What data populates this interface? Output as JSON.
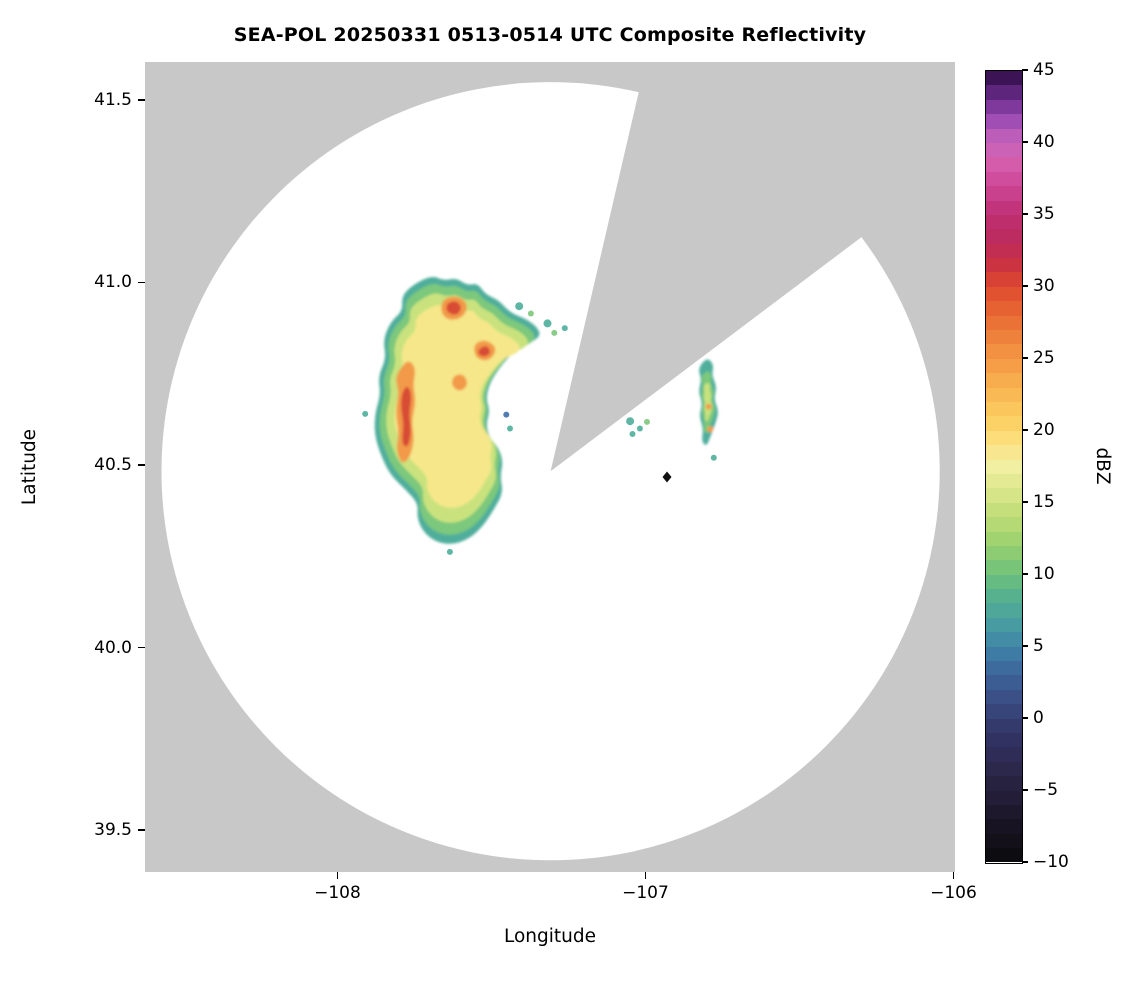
{
  "figure": {
    "title": "SEA-POL 20250331 0513-0514 UTC Composite Reflectivity",
    "xlabel": "Longitude",
    "ylabel": "Latitude",
    "colorbar_label": "dBZ",
    "masked_color": "#c8c8c8",
    "field_color": "#ffffff"
  },
  "chart_data": {
    "type": "heatmap",
    "title": "SEA-POL 20250331 0513-0514 UTC Composite Reflectivity",
    "xlabel": "Longitude",
    "ylabel": "Latitude",
    "x_range": [
      -108.625,
      -105.995
    ],
    "y_range": [
      39.385,
      41.604
    ],
    "x_ticks": {
      "values": [
        -108,
        -107,
        -106
      ],
      "labels": [
        "−108",
        "−107",
        "−106"
      ]
    },
    "y_ticks": {
      "values": [
        39.5,
        40.0,
        40.5,
        41.0,
        41.5
      ],
      "labels": [
        "39.5",
        "40.0",
        "40.5",
        "41.0",
        "41.5"
      ]
    },
    "radar": {
      "center_lon": -107.308,
      "center_lat": 40.483,
      "range_deg_lat": 1.066,
      "missing_sector_azimuth_deg": [
        13,
        53
      ]
    },
    "wedge_polygon": [
      [
        -107.308,
        40.483
      ],
      [
        -106.891,
        41.996
      ],
      [
        -105.863,
        41.401
      ]
    ],
    "palette": {
      "teal": "#4fae9b",
      "green": "#7cc87c",
      "yellowgreen": "#c9e27e",
      "yellow": "#f5e78a",
      "orange": "#f29a48",
      "red": "#d84b35",
      "blue": "#3f6fa8"
    },
    "colorbar": {
      "min": -10,
      "max": 45,
      "segments": 55,
      "tick_values": [
        45,
        40,
        35,
        30,
        25,
        20,
        15,
        10,
        5,
        0,
        -5,
        -10
      ],
      "tick_labels": [
        "45",
        "40",
        "35",
        "30",
        "25",
        "20",
        "15",
        "10",
        "5",
        "0",
        "−5",
        "−10"
      ],
      "stops": [
        [
          -10,
          "#0a0a0c"
        ],
        [
          -7,
          "#1b1527"
        ],
        [
          -4,
          "#2a2546"
        ],
        [
          -1,
          "#343467"
        ],
        [
          1,
          "#394a80"
        ],
        [
          3,
          "#3c639a"
        ],
        [
          5,
          "#3f84a9"
        ],
        [
          7,
          "#49a29e"
        ],
        [
          9,
          "#5cb588"
        ],
        [
          10,
          "#6ec07b"
        ],
        [
          12,
          "#97d06f"
        ],
        [
          14,
          "#bedc77"
        ],
        [
          16,
          "#dde88d"
        ],
        [
          17.5,
          "#f1efa2"
        ],
        [
          19,
          "#fbe387"
        ],
        [
          20,
          "#fcd76c"
        ],
        [
          22,
          "#fac158"
        ],
        [
          24,
          "#f6a54a"
        ],
        [
          26,
          "#f08a3e"
        ],
        [
          28,
          "#e96a34"
        ],
        [
          30,
          "#dd4a2e"
        ],
        [
          31.5,
          "#cc3340"
        ],
        [
          33,
          "#bc2b59"
        ],
        [
          35,
          "#bf2f74"
        ],
        [
          37,
          "#cc4594"
        ],
        [
          38.5,
          "#d55cab"
        ],
        [
          40,
          "#c865bb"
        ],
        [
          41.5,
          "#a04db4"
        ],
        [
          43,
          "#6f2f92"
        ],
        [
          44,
          "#4a1a66"
        ],
        [
          45,
          "#2e0e45"
        ]
      ]
    },
    "echoes": {
      "main": {
        "max_dbz": 32,
        "outline": [
          [
            -107.694,
            41.02
          ],
          [
            -107.655,
            41.005
          ],
          [
            -107.615,
            41.012
          ],
          [
            -107.578,
            40.992
          ],
          [
            -107.545,
            40.998
          ],
          [
            -107.52,
            40.968
          ],
          [
            -107.478,
            40.952
          ],
          [
            -107.452,
            40.928
          ],
          [
            -107.425,
            40.912
          ],
          [
            -107.388,
            40.9
          ],
          [
            -107.352,
            40.878
          ],
          [
            -107.34,
            40.855
          ],
          [
            -107.372,
            40.835
          ],
          [
            -107.415,
            40.822
          ],
          [
            -107.448,
            40.792
          ],
          [
            -107.478,
            40.762
          ],
          [
            -107.505,
            40.725
          ],
          [
            -107.518,
            40.682
          ],
          [
            -107.505,
            40.648
          ],
          [
            -107.518,
            40.61
          ],
          [
            -107.505,
            40.572
          ],
          [
            -107.478,
            40.548
          ],
          [
            -107.462,
            40.51
          ],
          [
            -107.472,
            40.468
          ],
          [
            -107.462,
            40.425
          ],
          [
            -107.492,
            40.378
          ],
          [
            -107.528,
            40.332
          ],
          [
            -107.572,
            40.298
          ],
          [
            -107.625,
            40.282
          ],
          [
            -107.678,
            40.288
          ],
          [
            -107.72,
            40.315
          ],
          [
            -107.742,
            40.355
          ],
          [
            -107.738,
            40.395
          ],
          [
            -107.778,
            40.432
          ],
          [
            -107.828,
            40.472
          ],
          [
            -107.86,
            40.528
          ],
          [
            -107.88,
            40.585
          ],
          [
            -107.878,
            40.642
          ],
          [
            -107.86,
            40.692
          ],
          [
            -107.868,
            40.742
          ],
          [
            -107.842,
            40.792
          ],
          [
            -107.852,
            40.842
          ],
          [
            -107.828,
            40.892
          ],
          [
            -107.788,
            40.922
          ],
          [
            -107.792,
            40.962
          ],
          [
            -107.758,
            40.992
          ]
        ],
        "layers": [
          {
            "scale": 1.0,
            "color": "teal",
            "dbz": 8
          },
          {
            "scale": 0.94,
            "color": "green",
            "dbz": 11
          },
          {
            "scale": 0.86,
            "color": "yellowgreen",
            "dbz": 14
          },
          {
            "scale": 0.76,
            "color": "yellow",
            "dbz": 18
          }
        ],
        "patches": [
          {
            "color": "orange",
            "dbz": 25,
            "points": [
              [
                -107.66,
                40.955
              ],
              [
                -107.61,
                40.965
              ],
              [
                -107.575,
                40.94
              ],
              [
                -107.59,
                40.905
              ],
              [
                -107.635,
                40.895
              ],
              [
                -107.665,
                40.915
              ]
            ]
          },
          {
            "color": "orange",
            "dbz": 25,
            "points": [
              [
                -107.8,
                40.76
              ],
              [
                -107.77,
                40.79
              ],
              [
                -107.745,
                40.765
              ],
              [
                -107.755,
                40.72
              ],
              [
                -107.745,
                40.672
              ],
              [
                -107.76,
                40.62
              ],
              [
                -107.75,
                40.57
              ],
              [
                -107.765,
                40.52
              ],
              [
                -107.79,
                40.5
              ],
              [
                -107.81,
                40.54
              ],
              [
                -107.8,
                40.59
              ],
              [
                -107.812,
                40.645
              ],
              [
                -107.8,
                40.7
              ],
              [
                -107.812,
                40.735
              ]
            ]
          },
          {
            "color": "orange",
            "dbz": 25,
            "points": [
              [
                -107.56,
                40.83
              ],
              [
                -107.52,
                40.845
              ],
              [
                -107.48,
                40.82
              ],
              [
                -107.505,
                40.785
              ],
              [
                -107.55,
                40.79
              ]
            ]
          },
          {
            "color": "orange",
            "dbz": 24,
            "points": [
              [
                -107.625,
                40.745
              ],
              [
                -107.59,
                40.75
              ],
              [
                -107.575,
                40.72
              ],
              [
                -107.6,
                40.7
              ],
              [
                -107.63,
                40.715
              ]
            ]
          },
          {
            "color": "red",
            "dbz": 30,
            "points": [
              [
                -107.645,
                40.945
              ],
              [
                -107.61,
                40.95
              ],
              [
                -107.595,
                40.928
              ],
              [
                -107.615,
                40.908
              ],
              [
                -107.648,
                40.92
              ]
            ]
          },
          {
            "color": "red",
            "dbz": 31,
            "points": [
              [
                -107.79,
                40.7
              ],
              [
                -107.772,
                40.72
              ],
              [
                -107.758,
                40.69
              ],
              [
                -107.768,
                40.64
              ],
              [
                -107.76,
                40.59
              ],
              [
                -107.772,
                40.545
              ],
              [
                -107.792,
                40.56
              ],
              [
                -107.785,
                40.61
              ],
              [
                -107.795,
                40.66
              ]
            ]
          },
          {
            "color": "red",
            "dbz": 29,
            "points": [
              [
                -107.54,
                40.82
              ],
              [
                -107.515,
                40.828
              ],
              [
                -107.5,
                40.808
              ],
              [
                -107.522,
                40.795
              ],
              [
                -107.545,
                40.803
              ]
            ]
          }
        ]
      },
      "secondary": {
        "max_dbz": 24,
        "outline": [
          [
            -106.8,
            40.795
          ],
          [
            -106.778,
            40.775
          ],
          [
            -106.785,
            40.745
          ],
          [
            -106.768,
            40.715
          ],
          [
            -106.778,
            40.68
          ],
          [
            -106.762,
            40.648
          ],
          [
            -106.772,
            40.615
          ],
          [
            -106.788,
            40.58
          ],
          [
            -106.802,
            40.55
          ],
          [
            -106.818,
            40.565
          ],
          [
            -106.812,
            40.6
          ],
          [
            -106.826,
            40.635
          ],
          [
            -106.815,
            40.668
          ],
          [
            -106.828,
            40.7
          ],
          [
            -106.818,
            40.735
          ],
          [
            -106.83,
            40.765
          ]
        ],
        "layers": [
          {
            "scale": 1.0,
            "color": "teal",
            "dbz": 8
          },
          {
            "scale": 0.72,
            "color": "green",
            "dbz": 12
          },
          {
            "scale": 0.45,
            "color": "yellowgreen",
            "dbz": 16
          }
        ],
        "dots": [
          {
            "lon": -106.795,
            "lat": 40.66,
            "r": 3,
            "color": "orange"
          },
          {
            "lon": -106.79,
            "lat": 40.598,
            "r": 3,
            "color": "orange"
          }
        ]
      },
      "specks": [
        [
          -107.41,
          40.935,
          4,
          "teal"
        ],
        [
          -107.372,
          40.915,
          3,
          "green"
        ],
        [
          -107.318,
          40.888,
          4,
          "teal"
        ],
        [
          -107.296,
          40.862,
          3,
          "green"
        ],
        [
          -107.262,
          40.875,
          3,
          "teal"
        ],
        [
          -107.05,
          40.62,
          4,
          "teal"
        ],
        [
          -107.018,
          40.6,
          3,
          "teal"
        ],
        [
          -106.995,
          40.618,
          3,
          "green"
        ],
        [
          -107.042,
          40.585,
          3,
          "teal"
        ],
        [
          -107.635,
          40.262,
          3,
          "teal"
        ],
        [
          -107.452,
          40.638,
          3,
          "blue"
        ],
        [
          -107.44,
          40.6,
          3,
          "teal"
        ],
        [
          -107.91,
          40.64,
          3,
          "teal"
        ],
        [
          -106.778,
          40.52,
          3,
          "teal"
        ]
      ],
      "marker": {
        "lon": -106.93,
        "lat": 40.467,
        "shape": "diamond",
        "color": "#111111"
      }
    }
  }
}
